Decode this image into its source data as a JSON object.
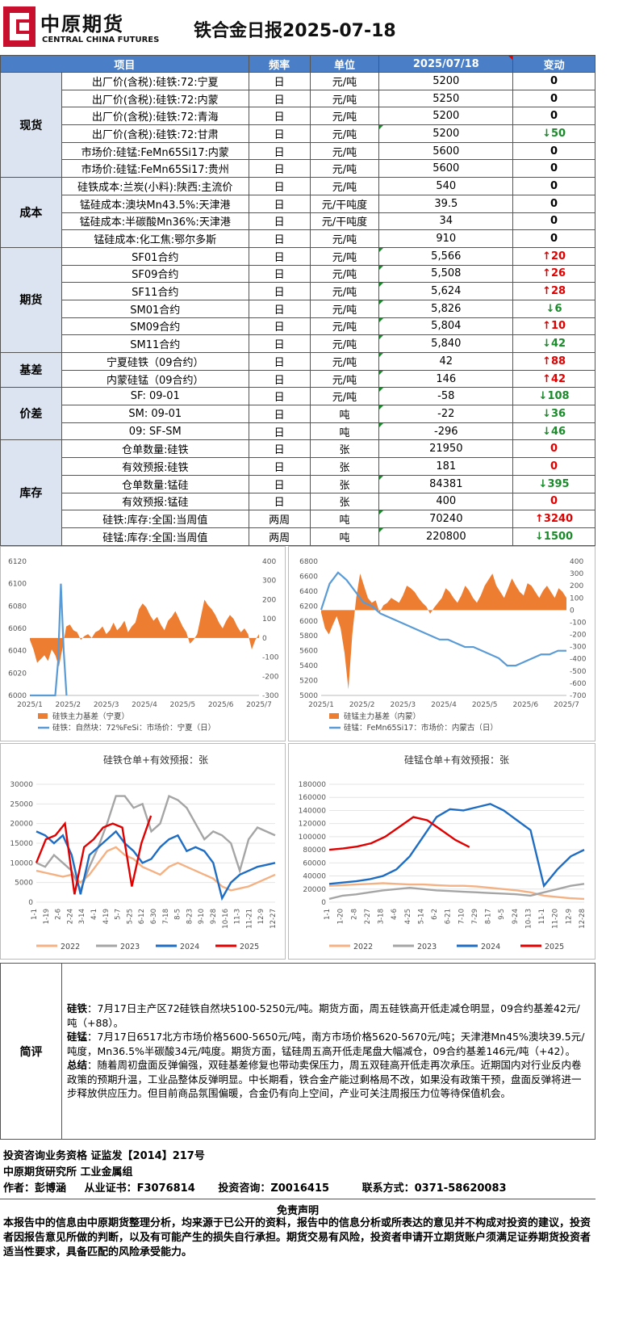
{
  "header": {
    "logo_cn": "中原期货",
    "logo_en": "CENTRAL CHINA FUTURES",
    "title": "铁合金日报2025-07-18",
    "brand_color": "#c8102e"
  },
  "table": {
    "headers": [
      "项目",
      "频率",
      "单位",
      "2025/07/18",
      "变动"
    ],
    "groups": [
      {
        "category": "现货",
        "rows": [
          {
            "item": "出厂价(含税):硅铁:72:宁夏",
            "freq": "日",
            "unit": "元/吨",
            "value": "5200",
            "change": "0",
            "dir": ""
          },
          {
            "item": "出厂价(含税):硅铁:72:内蒙",
            "freq": "日",
            "unit": "元/吨",
            "value": "5250",
            "change": "0",
            "dir": ""
          },
          {
            "item": "出厂价(含税):硅铁:72:青海",
            "freq": "日",
            "unit": "元/吨",
            "value": "5200",
            "change": "0",
            "dir": ""
          },
          {
            "item": "出厂价(含税):硅铁:72:甘肃",
            "freq": "日",
            "unit": "元/吨",
            "value": "5200",
            "change": "50",
            "dir": "down"
          },
          {
            "item": "市场价:硅锰:FeMn65Si17:内蒙",
            "freq": "日",
            "unit": "元/吨",
            "value": "5600",
            "change": "0",
            "dir": ""
          },
          {
            "item": "市场价:硅锰:FeMn65Si17:贵州",
            "freq": "日",
            "unit": "元/吨",
            "value": "5600",
            "change": "0",
            "dir": ""
          }
        ]
      },
      {
        "category": "成本",
        "rows": [
          {
            "item": "硅铁成本:兰炭(小料):陕西:主流价",
            "freq": "日",
            "unit": "元/吨",
            "value": "540",
            "change": "0",
            "dir": ""
          },
          {
            "item": "锰硅成本:澳块Mn43.5%:天津港",
            "freq": "日",
            "unit": "元/干吨度",
            "value": "39.5",
            "change": "0",
            "dir": ""
          },
          {
            "item": "锰硅成本:半碳酸Mn36%:天津港",
            "freq": "日",
            "unit": "元/干吨度",
            "value": "34",
            "change": "0",
            "dir": ""
          },
          {
            "item": "锰硅成本:化工焦:鄂尔多斯",
            "freq": "日",
            "unit": "元/吨",
            "value": "910",
            "change": "0",
            "dir": ""
          }
        ]
      },
      {
        "category": "期货",
        "rows": [
          {
            "item": "SF01合约",
            "freq": "日",
            "unit": "元/吨",
            "value": "5,566",
            "change": "20",
            "dir": "up"
          },
          {
            "item": "SF09合约",
            "freq": "日",
            "unit": "元/吨",
            "value": "5,508",
            "change": "26",
            "dir": "up"
          },
          {
            "item": "SF11合约",
            "freq": "日",
            "unit": "元/吨",
            "value": "5,624",
            "change": "28",
            "dir": "up"
          },
          {
            "item": "SM01合约",
            "freq": "日",
            "unit": "元/吨",
            "value": "5,826",
            "change": "6",
            "dir": "down"
          },
          {
            "item": "SM09合约",
            "freq": "日",
            "unit": "元/吨",
            "value": "5,804",
            "change": "10",
            "dir": "up"
          },
          {
            "item": "SM11合约",
            "freq": "日",
            "unit": "元/吨",
            "value": "5,840",
            "change": "42",
            "dir": "down"
          }
        ]
      },
      {
        "category": "基差",
        "rows": [
          {
            "item": "宁夏硅铁（09合约）",
            "freq": "日",
            "unit": "元/吨",
            "value": "42",
            "change": "88",
            "dir": "up"
          },
          {
            "item": "内蒙硅锰（09合约）",
            "freq": "日",
            "unit": "元/吨",
            "value": "146",
            "change": "42",
            "dir": "up"
          }
        ]
      },
      {
        "category": "价差",
        "rows": [
          {
            "item": "SF: 09-01",
            "freq": "日",
            "unit": "元/吨",
            "value": "-58",
            "change": "108",
            "dir": "down"
          },
          {
            "item": "SM: 09-01",
            "freq": "日",
            "unit": "吨",
            "value": "-22",
            "change": "36",
            "dir": "down"
          },
          {
            "item": "09: SF-SM",
            "freq": "日",
            "unit": "吨",
            "value": "-296",
            "change": "46",
            "dir": "down"
          }
        ]
      },
      {
        "category": "库存",
        "rows": [
          {
            "item": "仓单数量:硅铁",
            "freq": "日",
            "unit": "张",
            "value": "21950",
            "change": "0",
            "dir": "red0"
          },
          {
            "item": "有效预报:硅铁",
            "freq": "日",
            "unit": "张",
            "value": "181",
            "change": "0",
            "dir": "red0"
          },
          {
            "item": "仓单数量:锰硅",
            "freq": "日",
            "unit": "张",
            "value": "84381",
            "change": "395",
            "dir": "down"
          },
          {
            "item": "有效预报:锰硅",
            "freq": "日",
            "unit": "张",
            "value": "400",
            "change": "0",
            "dir": "red0"
          },
          {
            "item": "硅铁:库存:全国:当周值",
            "freq": "两周",
            "unit": "吨",
            "value": "70240",
            "change": "3240",
            "dir": "up"
          },
          {
            "item": "硅锰:库存:全国:当周值",
            "freq": "两周",
            "unit": "吨",
            "value": "220800",
            "change": "1500",
            "dir": "down"
          }
        ]
      }
    ]
  },
  "chart_data": [
    {
      "type": "line",
      "title": "",
      "x_ticks": [
        "2025/1",
        "2025/2",
        "2025/3",
        "2025/4",
        "2025/5",
        "2025/6",
        "2025/7"
      ],
      "y_left_ticks": [
        "6000",
        "6020",
        "6040",
        "6060",
        "6080",
        "6100",
        "6120"
      ],
      "y_right_ticks": [
        "-300",
        "-200",
        "-100",
        "0",
        "100",
        "200",
        "300",
        "400"
      ],
      "ylim_left": [
        6000,
        6120
      ],
      "ylim_right": [
        -300,
        400
      ],
      "series": [
        {
          "name": "硅铁主力基差（宁夏）",
          "kind": "area",
          "axis": "right",
          "color": "#ed7d31",
          "values": [
            -10,
            -60,
            -130,
            -110,
            -90,
            -120,
            -60,
            -90,
            -150,
            -50,
            60,
            70,
            40,
            30,
            -10,
            10,
            20,
            0,
            30,
            40,
            60,
            20,
            40,
            80,
            40,
            60,
            90,
            30,
            60,
            80,
            150,
            180,
            160,
            120,
            90,
            110,
            70,
            40,
            90,
            110,
            140,
            100,
            60,
            30,
            -30,
            -10,
            20,
            110,
            200,
            170,
            150,
            120,
            80,
            50,
            90,
            120,
            100,
            60,
            30,
            50,
            20,
            -60,
            -10,
            20
          ]
        },
        {
          "name": "硅铁：自然块：72%FeSi：市场价：宁夏（日）",
          "kind": "line",
          "axis": "left",
          "color": "#5b9bd5",
          "values": [
            6000,
            6000,
            6000,
            6000,
            6000,
            6000,
            6000,
            6000,
            6000,
            6000,
            6030,
            6100,
            6040,
            6000
          ]
        }
      ],
      "legend": [
        "硅铁主力基差（宁夏）",
        "硅铁：自然块：72%FeSi：市场价：宁夏（日）"
      ]
    },
    {
      "type": "line",
      "title": "",
      "x_ticks": [
        "2025/1",
        "2025/2",
        "2025/3",
        "2025/4",
        "2025/5",
        "2025/6",
        "2025/7"
      ],
      "y_left_ticks": [
        "5000",
        "5200",
        "5400",
        "5600",
        "5800",
        "6000",
        "6200",
        "6400",
        "6600",
        "6800"
      ],
      "y_right_ticks": [
        "-700",
        "-600",
        "-500",
        "-400",
        "-300",
        "-200",
        "-100",
        "0",
        "100",
        "200",
        "300",
        "400"
      ],
      "ylim_left": [
        5000,
        6800
      ],
      "ylim_right": [
        -700,
        400
      ],
      "series": [
        {
          "name": "硅锰主力基差（内蒙）",
          "kind": "area",
          "axis": "right",
          "color": "#ed7d31",
          "values": [
            -20,
            -150,
            -200,
            -120,
            -50,
            -150,
            -350,
            -650,
            -200,
            100,
            300,
            200,
            100,
            60,
            80,
            -20,
            40,
            60,
            100,
            80,
            60,
            120,
            200,
            180,
            150,
            100,
            60,
            30,
            -30,
            20,
            60,
            100,
            180,
            150,
            100,
            60,
            120,
            200,
            160,
            100,
            60,
            120,
            200,
            250,
            300,
            200,
            150,
            100,
            180,
            260,
            200,
            150,
            120,
            220,
            200,
            150,
            100,
            160,
            200,
            150,
            100,
            180,
            150,
            100
          ]
        },
        {
          "name": "硅锰：FeMn65Si17：市场价：内蒙古（日）",
          "kind": "line",
          "axis": "left",
          "color": "#5b9bd5",
          "values": [
            6150,
            6500,
            6650,
            6550,
            6400,
            6250,
            6200,
            6100,
            6050,
            6000,
            5950,
            5900,
            5850,
            5800,
            5750,
            5750,
            5700,
            5650,
            5650,
            5600,
            5550,
            5500,
            5400,
            5400,
            5450,
            5500,
            5550,
            5550,
            5600,
            5600
          ]
        }
      ],
      "legend": [
        "硅锰主力基差（内蒙）",
        "硅锰：FeMn65Si17：市场价：内蒙古（日）"
      ]
    },
    {
      "type": "line",
      "title": "硅铁仓单+有效预报：张",
      "x_ticks": [
        "1-1",
        "1-19",
        "2-6",
        "2-24",
        "3-14",
        "4-1",
        "4-19",
        "5-7",
        "5-25",
        "6-12",
        "6-30",
        "7-18",
        "8-5",
        "8-23",
        "9-10",
        "9-28",
        "10-16",
        "11-3",
        "11-21",
        "12-9",
        "12-27"
      ],
      "y_ticks": [
        "0",
        "5000",
        "10000",
        "15000",
        "20000",
        "25000",
        "30000"
      ],
      "ylim": [
        0,
        30000
      ],
      "series": [
        {
          "name": "2022",
          "color": "#f4b183",
          "values": [
            8000,
            7500,
            7000,
            6500,
            7000,
            5000,
            7000,
            10000,
            13000,
            14000,
            12000,
            11000,
            9000,
            8000,
            7000,
            9000,
            10000,
            9000,
            8000,
            7000,
            6000,
            4000,
            3000,
            3500,
            4000,
            5000,
            6000,
            7000
          ]
        },
        {
          "name": "2023",
          "color": "#a5a5a5",
          "values": [
            10000,
            9000,
            12000,
            10000,
            8000,
            3000,
            9000,
            14000,
            20000,
            27000,
            27000,
            24000,
            25000,
            18000,
            20000,
            27000,
            26000,
            24000,
            20000,
            16000,
            18000,
            17000,
            15000,
            8000,
            16000,
            19000,
            18000,
            17000
          ]
        },
        {
          "name": "2024",
          "color": "#1f6dc2",
          "values": [
            18000,
            17000,
            15000,
            17000,
            12000,
            2000,
            12000,
            14000,
            16000,
            18000,
            15000,
            13000,
            10000,
            11000,
            14000,
            16000,
            17000,
            13000,
            14000,
            13000,
            10000,
            1000,
            5000,
            7000,
            8000,
            9000,
            9500,
            10000
          ]
        },
        {
          "name": "2025",
          "color": "#e00000",
          "values": [
            10000,
            16000,
            17000,
            20000,
            2000,
            14000,
            16000,
            19000,
            20000,
            19000,
            4000,
            15000,
            22000
          ]
        }
      ],
      "legend": [
        "2022",
        "2023",
        "2024",
        "2025"
      ]
    },
    {
      "type": "line",
      "title": "硅锰仓单+有效预报：张",
      "x_ticks": [
        "1-1",
        "1-20",
        "2-8",
        "2-27",
        "3-18",
        "4-6",
        "4-25",
        "5-14",
        "6-2",
        "6-21",
        "7-10",
        "7-29",
        "8-17",
        "9-5",
        "9-24",
        "10-13",
        "11-1",
        "11-20",
        "12-9",
        "12-28"
      ],
      "y_ticks": [
        "0",
        "20000",
        "40000",
        "60000",
        "80000",
        "100000",
        "120000",
        "140000",
        "160000",
        "180000"
      ],
      "ylim": [
        0,
        180000
      ],
      "series": [
        {
          "name": "2022",
          "color": "#f4b183",
          "values": [
            25000,
            26000,
            27000,
            28000,
            29000,
            28000,
            27000,
            27000,
            26000,
            25000,
            25000,
            24000,
            22000,
            20000,
            18000,
            15000,
            10000,
            8000,
            6000,
            5000
          ]
        },
        {
          "name": "2023",
          "color": "#a5a5a5",
          "values": [
            5000,
            10000,
            12000,
            15000,
            18000,
            20000,
            22000,
            20000,
            18000,
            17000,
            16000,
            15000,
            14000,
            13000,
            12000,
            10000,
            15000,
            20000,
            25000,
            28000
          ]
        },
        {
          "name": "2024",
          "color": "#1f6dc2",
          "values": [
            28000,
            30000,
            32000,
            35000,
            40000,
            50000,
            70000,
            100000,
            130000,
            142000,
            140000,
            145000,
            150000,
            140000,
            125000,
            110000,
            25000,
            50000,
            70000,
            80000
          ]
        },
        {
          "name": "2025",
          "color": "#e00000",
          "values": [
            80000,
            82000,
            85000,
            90000,
            100000,
            115000,
            130000,
            125000,
            110000,
            95000,
            84000
          ]
        }
      ],
      "legend": [
        "2022",
        "2023",
        "2024",
        "2025"
      ]
    }
  ],
  "comment": {
    "label": "简评",
    "p1_head": "硅铁",
    "p1_body": "：7月17日主产区72硅铁自然块5100-5250元/吨。期货方面，周五硅铁高开低走减仓明显，09合约基差42元/吨（+88）。",
    "p2_head": "硅锰",
    "p2_body": "：7月17日6517北方市场价格5600-5650元/吨，南方市场价格5620-5670元/吨；天津港Mn45%澳块39.5元/吨度，Mn36.5%半碳酸34元/吨度。期货方面，锰硅周五高开低走尾盘大幅减仓，09合约基差146元/吨（+42）。",
    "p3_head": "总结",
    "p3_body": "：随着周初盘面反弹偏强，双硅基差修复也带动卖保压力，周五双硅高开低走再次承压。近期国内对行业反内卷政策的预期升温，工业品整体反弹明显。中长期看，铁合金产能过剩格局不改，如果没有政策干预，盘面反弹将进一步释放供应压力。但目前商品氛围偏暖，合金仍有向上空间，产业可关注周报压力位等待保值机会。"
  },
  "footer": {
    "qualification": "投资咨询业务资格    证监发【2014】217号",
    "institute": "中原期货研究所     工业金属组",
    "author_label": "作者：",
    "author": "彭博涵",
    "cert_label": "从业证书：",
    "cert": "F3076814",
    "consult_label": "投资咨询：",
    "consult": "Z0016415",
    "contact_label": "联系方式：",
    "contact": "0371-58620083",
    "disclaimer_title": "免责声明",
    "disclaimer": "本报告中的信息由中原期货整理分析，均来源于已公开的资料，报告中的信息分析或所表达的意见并不构成对投资的建议，投资者因报告意见所做的判断，以及有可能产生的损失自行承担。期货交易有风险，投资者申请开立期货账户须满足证券期货投资者适当性要求，具备匹配的风险承受能力。"
  }
}
